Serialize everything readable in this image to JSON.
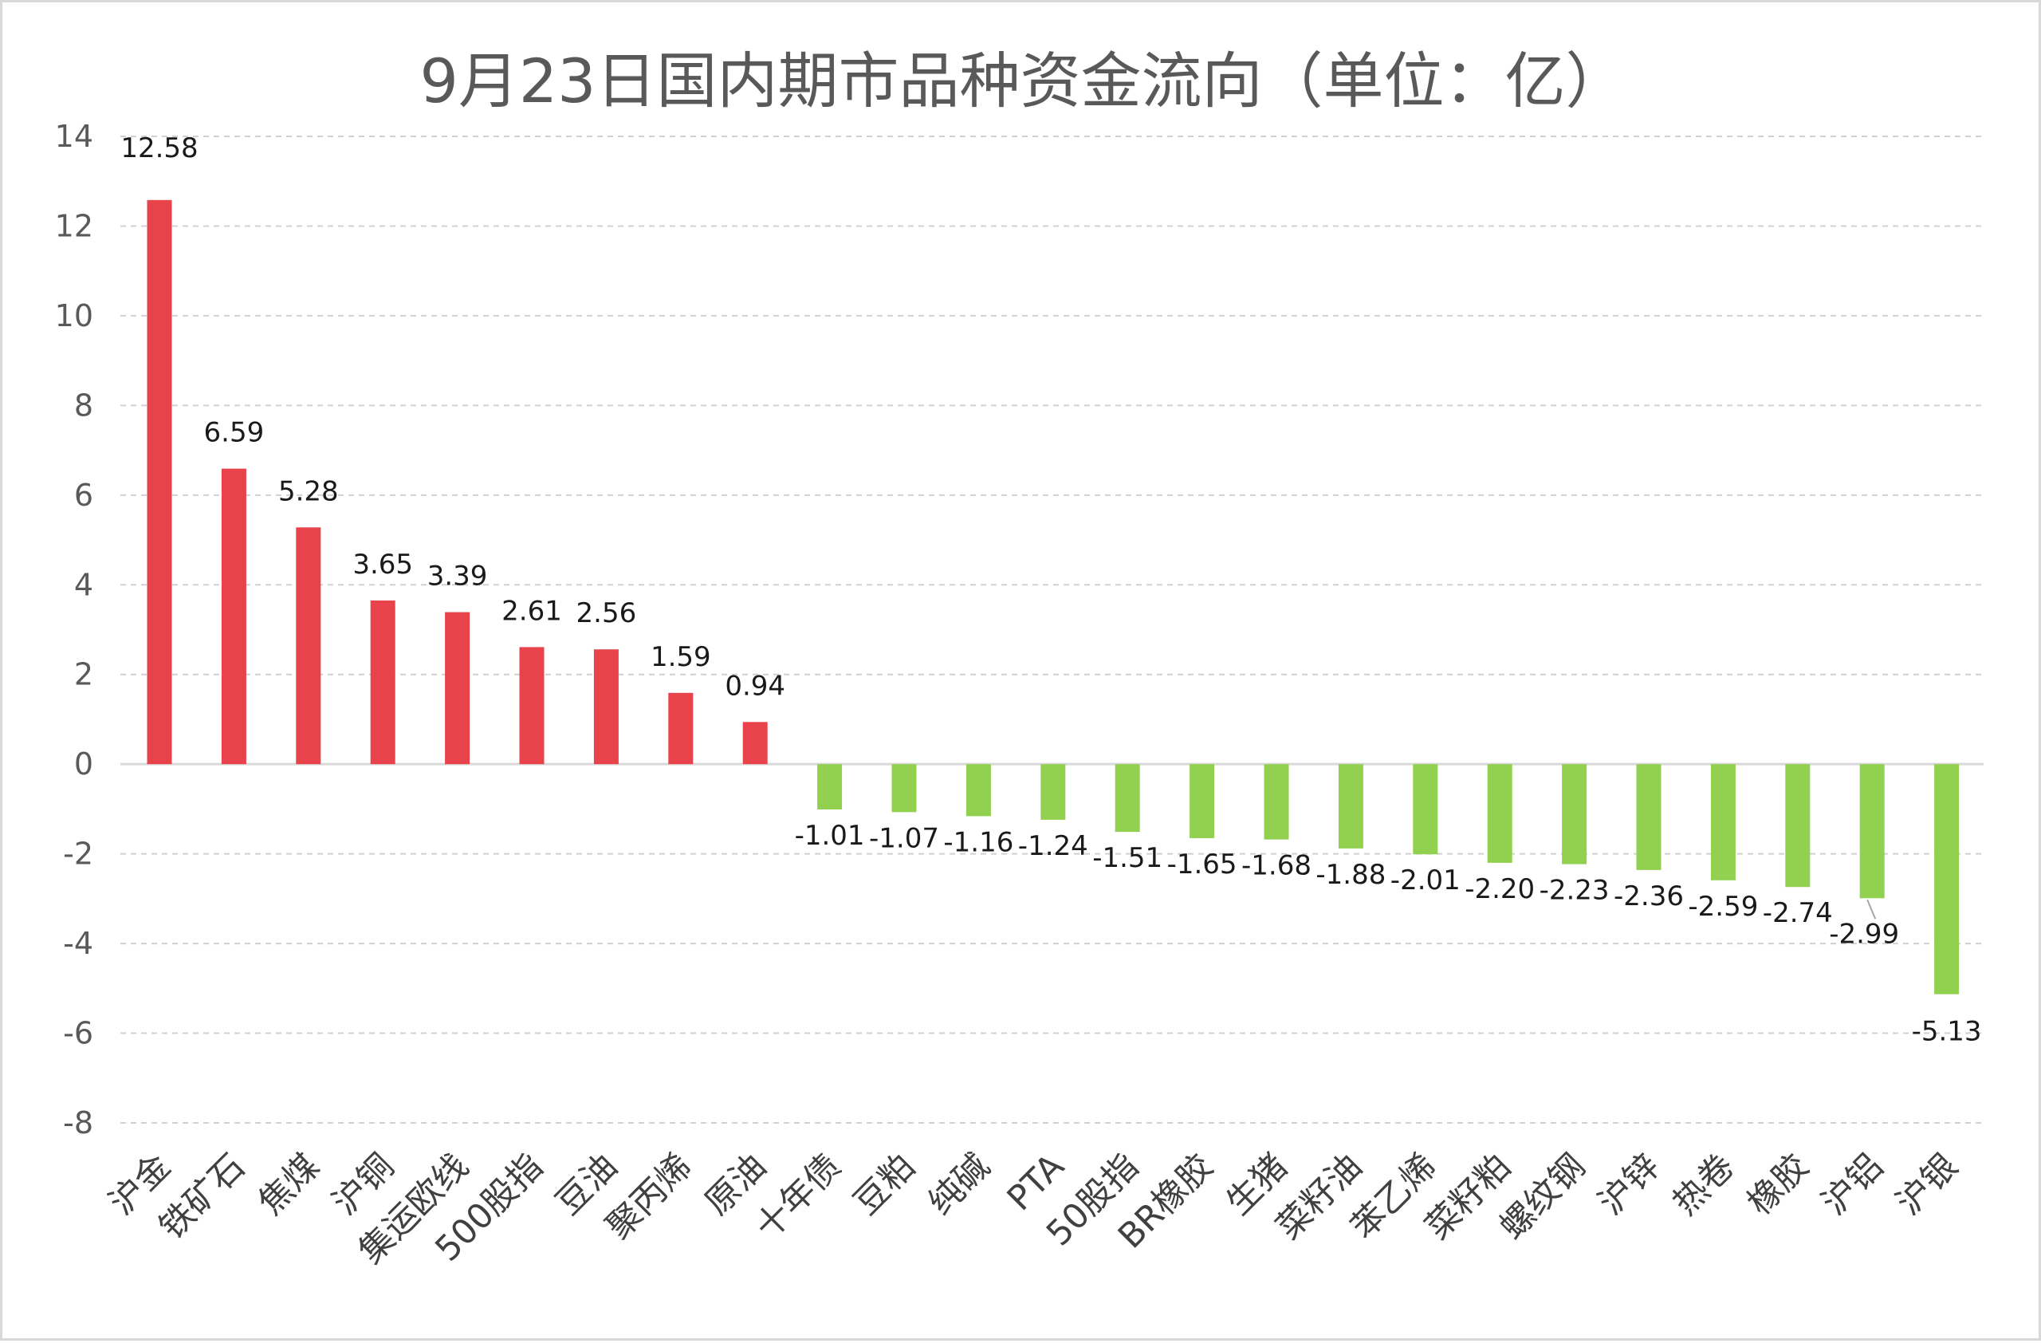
{
  "chart_data": {
    "type": "bar",
    "title": "9月23日国内期市品种资金流向（单位：亿）",
    "xlabel": "",
    "ylabel": "",
    "ylim": [
      -8,
      14
    ],
    "ytick_step": 2,
    "grid": true,
    "legend": "none",
    "colors": {
      "positive": "#e8424b",
      "negative": "#92d050",
      "grid": "#d0d0d0",
      "axis": "#d9d9d9",
      "leader_line": "#a6a6a6"
    },
    "categories": [
      "沪金",
      "铁矿石",
      "焦煤",
      "沪铜",
      "集运欧线",
      "500股指",
      "豆油",
      "聚丙烯",
      "原油",
      "十年债",
      "豆粕",
      "纯碱",
      "PTA",
      "50股指",
      "BR橡胶",
      "生猪",
      "菜籽油",
      "苯乙烯",
      "菜籽粕",
      "螺纹钢",
      "沪锌",
      "热卷",
      "橡胶",
      "沪铝",
      "沪银"
    ],
    "values": [
      12.58,
      6.59,
      5.28,
      3.65,
      3.39,
      2.61,
      2.56,
      1.59,
      0.94,
      -1.01,
      -1.07,
      -1.16,
      -1.24,
      -1.51,
      -1.65,
      -1.68,
      -1.88,
      -2.01,
      -2.2,
      -2.23,
      -2.36,
      -2.59,
      -2.74,
      -2.99,
      -5.13
    ],
    "value_labels": [
      "12.58",
      "6.59",
      "5.28",
      "3.65",
      "3.39",
      "2.61",
      "2.56",
      "1.59",
      "0.94",
      "-1.01",
      "-1.07",
      "-1.16",
      "-1.24",
      "-1.51",
      "-1.65",
      "-1.68",
      "-1.88",
      "-2.01",
      "-2.20",
      "-2.23",
      "-2.36",
      "-2.59",
      "-2.74",
      "-2.99",
      "-5.13"
    ],
    "ytick_labels": [
      "14",
      "12",
      "10",
      "8",
      "6",
      "4",
      "2",
      "0",
      "-2",
      "-4",
      "-6",
      "-8"
    ]
  }
}
